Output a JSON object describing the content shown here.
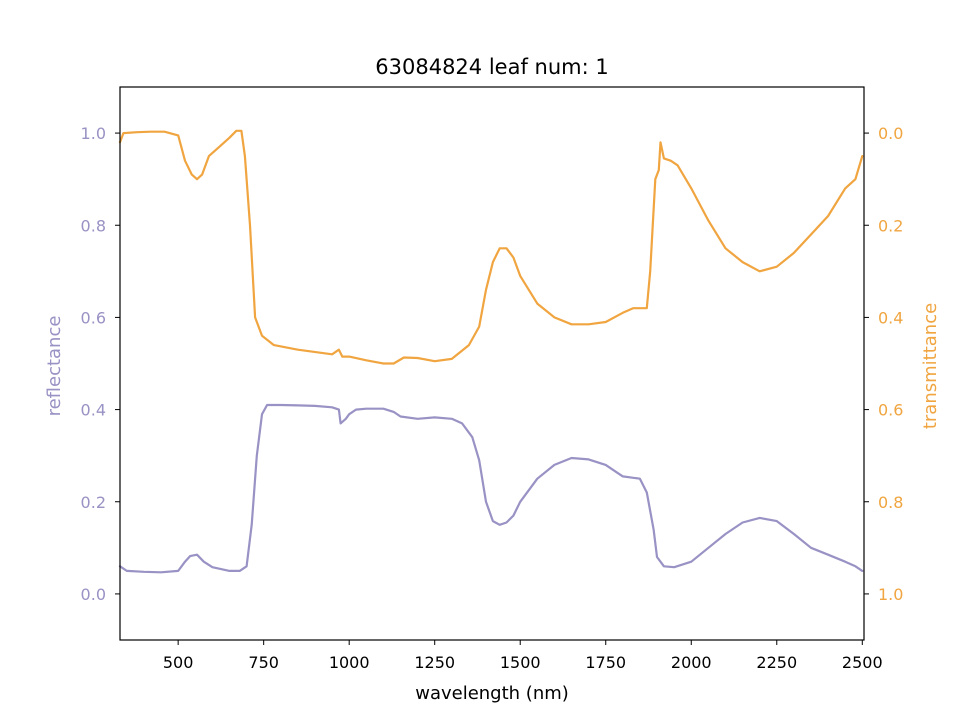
{
  "chart_data": {
    "type": "line",
    "title": "63084824 leaf num: 1",
    "xlabel": "wavelength (nm)",
    "xlim": [
      330,
      2505
    ],
    "x_ticks": [
      500,
      750,
      1000,
      1250,
      1500,
      1750,
      2000,
      2250,
      2500
    ],
    "x_tick_labels": [
      "500",
      "750",
      "1000",
      "1250",
      "1500",
      "1750",
      "2000",
      "2250",
      "2500"
    ],
    "left_axis": {
      "label": "reflectance",
      "color": "#9992c4",
      "ylim": [
        -0.1,
        1.1
      ],
      "ticks": [
        0.0,
        0.2,
        0.4,
        0.6,
        0.8,
        1.0
      ],
      "tick_labels": [
        "0.0",
        "0.2",
        "0.4",
        "0.6",
        "0.8",
        "1.0"
      ]
    },
    "right_axis": {
      "label": "transmittance",
      "color": "#f0a540",
      "inverted": true,
      "ylim": [
        1.1,
        -0.1
      ],
      "ticks": [
        0.0,
        0.2,
        0.4,
        0.6,
        0.8,
        1.0
      ],
      "tick_labels": [
        "0.0",
        "0.2",
        "0.4",
        "0.6",
        "0.8",
        "1.0"
      ]
    },
    "series": [
      {
        "axis": "left",
        "color": "#9992c4",
        "points": [
          [
            330,
            0.06
          ],
          [
            350,
            0.05
          ],
          [
            400,
            0.048
          ],
          [
            450,
            0.047
          ],
          [
            500,
            0.05
          ],
          [
            520,
            0.07
          ],
          [
            535,
            0.082
          ],
          [
            555,
            0.085
          ],
          [
            575,
            0.07
          ],
          [
            600,
            0.058
          ],
          [
            650,
            0.05
          ],
          [
            680,
            0.05
          ],
          [
            700,
            0.06
          ],
          [
            715,
            0.15
          ],
          [
            730,
            0.3
          ],
          [
            745,
            0.39
          ],
          [
            760,
            0.41
          ],
          [
            800,
            0.41
          ],
          [
            850,
            0.409
          ],
          [
            900,
            0.408
          ],
          [
            950,
            0.405
          ],
          [
            970,
            0.4
          ],
          [
            975,
            0.37
          ],
          [
            990,
            0.38
          ],
          [
            1000,
            0.39
          ],
          [
            1020,
            0.4
          ],
          [
            1050,
            0.402
          ],
          [
            1100,
            0.402
          ],
          [
            1130,
            0.395
          ],
          [
            1150,
            0.385
          ],
          [
            1200,
            0.38
          ],
          [
            1250,
            0.383
          ],
          [
            1300,
            0.38
          ],
          [
            1330,
            0.37
          ],
          [
            1360,
            0.34
          ],
          [
            1380,
            0.29
          ],
          [
            1400,
            0.2
          ],
          [
            1420,
            0.158
          ],
          [
            1440,
            0.15
          ],
          [
            1460,
            0.155
          ],
          [
            1480,
            0.17
          ],
          [
            1500,
            0.2
          ],
          [
            1550,
            0.25
          ],
          [
            1600,
            0.28
          ],
          [
            1650,
            0.295
          ],
          [
            1700,
            0.292
          ],
          [
            1750,
            0.28
          ],
          [
            1800,
            0.255
          ],
          [
            1850,
            0.25
          ],
          [
            1870,
            0.22
          ],
          [
            1890,
            0.14
          ],
          [
            1900,
            0.08
          ],
          [
            1910,
            0.07
          ],
          [
            1920,
            0.06
          ],
          [
            1950,
            0.058
          ],
          [
            2000,
            0.07
          ],
          [
            2050,
            0.1
          ],
          [
            2100,
            0.13
          ],
          [
            2150,
            0.155
          ],
          [
            2200,
            0.165
          ],
          [
            2250,
            0.158
          ],
          [
            2300,
            0.13
          ],
          [
            2350,
            0.1
          ],
          [
            2400,
            0.085
          ],
          [
            2450,
            0.07
          ],
          [
            2480,
            0.06
          ],
          [
            2500,
            0.05
          ]
        ]
      },
      {
        "axis": "right",
        "color": "#f0a540",
        "points": [
          [
            330,
            0.02
          ],
          [
            340,
            0.0
          ],
          [
            380,
            -0.002
          ],
          [
            420,
            -0.003
          ],
          [
            460,
            -0.003
          ],
          [
            500,
            0.005
          ],
          [
            520,
            0.06
          ],
          [
            540,
            0.09
          ],
          [
            555,
            0.1
          ],
          [
            570,
            0.09
          ],
          [
            590,
            0.05
          ],
          [
            620,
            0.03
          ],
          [
            650,
            0.01
          ],
          [
            670,
            -0.005
          ],
          [
            685,
            -0.005
          ],
          [
            695,
            0.05
          ],
          [
            710,
            0.2
          ],
          [
            725,
            0.4
          ],
          [
            745,
            0.44
          ],
          [
            780,
            0.46
          ],
          [
            850,
            0.47
          ],
          [
            950,
            0.48
          ],
          [
            970,
            0.47
          ],
          [
            980,
            0.485
          ],
          [
            1000,
            0.485
          ],
          [
            1050,
            0.493
          ],
          [
            1100,
            0.5
          ],
          [
            1130,
            0.5
          ],
          [
            1160,
            0.487
          ],
          [
            1200,
            0.488
          ],
          [
            1250,
            0.495
          ],
          [
            1300,
            0.49
          ],
          [
            1350,
            0.46
          ],
          [
            1380,
            0.42
          ],
          [
            1400,
            0.34
          ],
          [
            1420,
            0.28
          ],
          [
            1440,
            0.25
          ],
          [
            1460,
            0.25
          ],
          [
            1480,
            0.27
          ],
          [
            1500,
            0.31
          ],
          [
            1550,
            0.37
          ],
          [
            1600,
            0.4
          ],
          [
            1650,
            0.415
          ],
          [
            1700,
            0.415
          ],
          [
            1750,
            0.41
          ],
          [
            1800,
            0.39
          ],
          [
            1830,
            0.38
          ],
          [
            1870,
            0.38
          ],
          [
            1880,
            0.3
          ],
          [
            1895,
            0.1
          ],
          [
            1905,
            0.08
          ],
          [
            1910,
            0.02
          ],
          [
            1920,
            0.055
          ],
          [
            1940,
            0.06
          ],
          [
            1960,
            0.07
          ],
          [
            2000,
            0.12
          ],
          [
            2050,
            0.19
          ],
          [
            2100,
            0.25
          ],
          [
            2150,
            0.28
          ],
          [
            2200,
            0.3
          ],
          [
            2250,
            0.29
          ],
          [
            2300,
            0.26
          ],
          [
            2350,
            0.22
          ],
          [
            2400,
            0.18
          ],
          [
            2450,
            0.12
          ],
          [
            2480,
            0.1
          ],
          [
            2500,
            0.05
          ]
        ]
      }
    ]
  }
}
